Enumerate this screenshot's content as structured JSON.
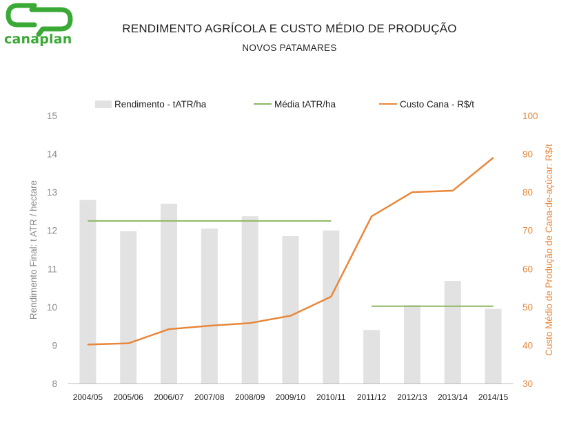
{
  "brand": {
    "name": "canaplan",
    "color": "#3aa935"
  },
  "header": {
    "title": "RENDIMENTO AGRÍCOLA E CUSTO MÉDIO DE PRODUÇÃO",
    "subtitle": "NOVOS PATAMARES"
  },
  "chart_data": {
    "type": "bar",
    "categories": [
      "2004/05",
      "2005/06",
      "2006/07",
      "2007/08",
      "2008/09",
      "2009/10",
      "2010/11",
      "2011/12",
      "2012/13",
      "2013/14",
      "2014/15"
    ],
    "series": [
      {
        "name": "Rendimento - tATR/ha",
        "kind": "bar",
        "axis": "left",
        "color": "#e2e2e2",
        "values": [
          12.8,
          11.98,
          12.7,
          12.05,
          12.37,
          11.85,
          12.0,
          9.4,
          10.05,
          10.68,
          9.95
        ]
      },
      {
        "name": "Média tATR/ha",
        "kind": "line",
        "axis": "left",
        "color": "#8db760",
        "segments": [
          {
            "from": "2004/05",
            "to": "2010/11",
            "value": 12.25
          },
          {
            "from": "2011/12",
            "to": "2014/15",
            "value": 10.02
          }
        ]
      },
      {
        "name": "Custo Cana - R$/t",
        "kind": "line",
        "axis": "right",
        "color": "#e8873a",
        "values": [
          40.2,
          40.5,
          44.2,
          45.1,
          45.8,
          47.7,
          52.7,
          73.7,
          80.0,
          80.4,
          89.0
        ]
      }
    ],
    "ylabel": "Rendimento Final: t ATR / hectare",
    "y2label": "Custo Médio de Produção de Cana-de-açúcar: R$/t",
    "ylim": [
      8,
      15
    ],
    "y2lim": [
      30,
      100
    ],
    "yticks": [
      "8",
      "9",
      "10",
      "11",
      "12",
      "13",
      "14",
      "15"
    ],
    "y2ticks": [
      "30",
      "40",
      "50",
      "60",
      "70",
      "80",
      "90",
      "100"
    ],
    "y2color": "#e8873a",
    "grid": false,
    "legend": "top"
  }
}
